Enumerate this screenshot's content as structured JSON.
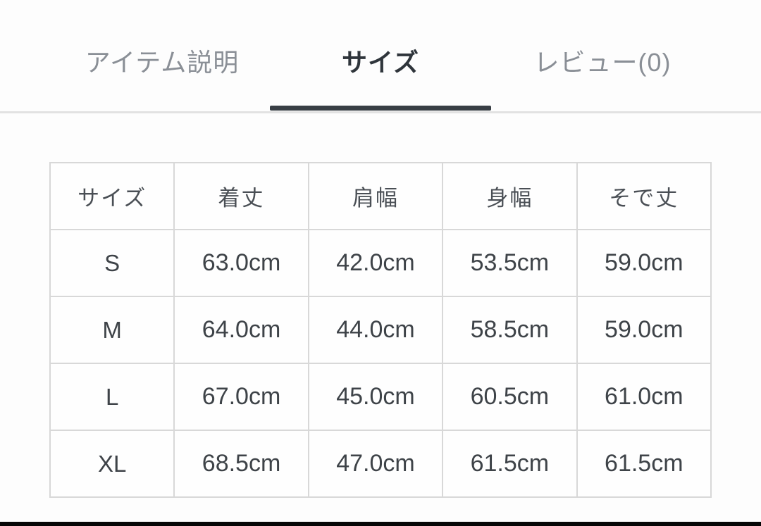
{
  "tabs": {
    "items": [
      {
        "label": "アイテム説明",
        "active": false
      },
      {
        "label": "サイズ",
        "active": true
      },
      {
        "label": "レビュー(0)",
        "active": false
      }
    ]
  },
  "size_table": {
    "headers": [
      "サイズ",
      "着丈",
      "肩幅",
      "身幅",
      "そで丈"
    ],
    "rows": [
      {
        "size": "S",
        "values": [
          "63.0cm",
          "42.0cm",
          "53.5cm",
          "59.0cm"
        ]
      },
      {
        "size": "M",
        "values": [
          "64.0cm",
          "44.0cm",
          "58.5cm",
          "59.0cm"
        ]
      },
      {
        "size": "L",
        "values": [
          "67.0cm",
          "45.0cm",
          "60.5cm",
          "61.0cm"
        ]
      },
      {
        "size": "XL",
        "values": [
          "68.5cm",
          "47.0cm",
          "61.5cm",
          "61.5cm"
        ]
      }
    ]
  },
  "colors": {
    "active_tab": "#2f353b",
    "inactive_tab": "#8a8f96",
    "tab_underline": "#383e44",
    "divider": "#e2e2e2",
    "table_border": "#d8d8d8",
    "cell_text": "#3e4348",
    "bottom_bar": "#060606"
  }
}
